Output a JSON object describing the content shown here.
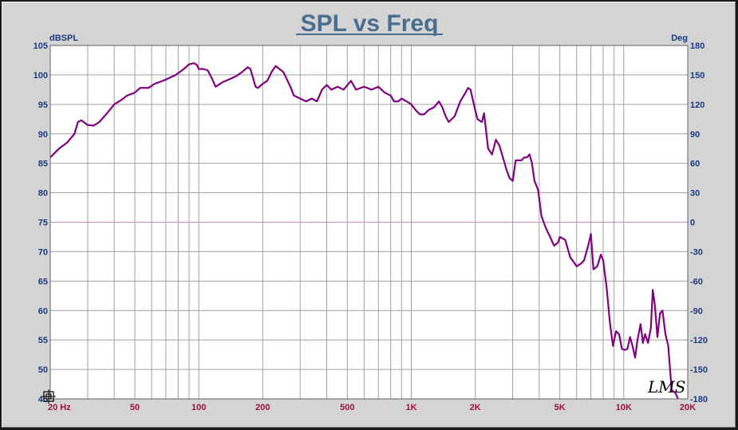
{
  "chart_data": {
    "type": "line",
    "title": "SPL vs Freq",
    "ylabel_left": "dBSPL",
    "ylabel_right": "Deg",
    "x_scale": "log",
    "xlim": [
      20,
      20000
    ],
    "ylim": [
      45,
      105
    ],
    "y2lim": [
      -180,
      180
    ],
    "grid": true,
    "x_tick_labels": [
      {
        "value": 20,
        "label": "20 Hz"
      },
      {
        "value": 50,
        "label": "50"
      },
      {
        "value": 100,
        "label": "100"
      },
      {
        "value": 200,
        "label": "200"
      },
      {
        "value": 500,
        "label": "500"
      },
      {
        "value": 1000,
        "label": "1K"
      },
      {
        "value": 2000,
        "label": "2K"
      },
      {
        "value": 5000,
        "label": "5K"
      },
      {
        "value": 10000,
        "label": "10K"
      },
      {
        "value": 20000,
        "label": "20K"
      }
    ],
    "y_ticks": [
      105,
      100,
      95,
      90,
      85,
      80,
      75,
      70,
      65,
      60,
      55,
      50,
      45
    ],
    "y2_ticks": [
      180,
      150,
      120,
      90,
      60,
      30,
      0,
      -30,
      -60,
      -90,
      -120,
      -150,
      -180
    ],
    "series": [
      {
        "color": "#800080",
        "points": [
          [
            20,
            86
          ],
          [
            22,
            87.5
          ],
          [
            24,
            88.5
          ],
          [
            26,
            90
          ],
          [
            27,
            92
          ],
          [
            28,
            92.3
          ],
          [
            30,
            91.5
          ],
          [
            32,
            91.4
          ],
          [
            34,
            92
          ],
          [
            37,
            93.5
          ],
          [
            40,
            95
          ],
          [
            43,
            95.7
          ],
          [
            46,
            96.5
          ],
          [
            50,
            97
          ],
          [
            53,
            97.8
          ],
          [
            58,
            97.8
          ],
          [
            62,
            98.5
          ],
          [
            70,
            99.2
          ],
          [
            78,
            100
          ],
          [
            85,
            101
          ],
          [
            90,
            101.8
          ],
          [
            95,
            102
          ],
          [
            98,
            101.7
          ],
          [
            100,
            101
          ],
          [
            105,
            101
          ],
          [
            110,
            100.8
          ],
          [
            115,
            99.5
          ],
          [
            120,
            98
          ],
          [
            130,
            98.8
          ],
          [
            140,
            99.3
          ],
          [
            150,
            99.8
          ],
          [
            160,
            100.5
          ],
          [
            170,
            101.3
          ],
          [
            175,
            101
          ],
          [
            185,
            98
          ],
          [
            190,
            97.8
          ],
          [
            200,
            98.5
          ],
          [
            210,
            99
          ],
          [
            220,
            100.5
          ],
          [
            230,
            101.5
          ],
          [
            250,
            100.5
          ],
          [
            270,
            98
          ],
          [
            280,
            96.5
          ],
          [
            300,
            96
          ],
          [
            320,
            95.5
          ],
          [
            340,
            96
          ],
          [
            360,
            95.5
          ],
          [
            380,
            97.5
          ],
          [
            400,
            98.3
          ],
          [
            420,
            97.5
          ],
          [
            450,
            98
          ],
          [
            480,
            97.5
          ],
          [
            520,
            99
          ],
          [
            550,
            97.5
          ],
          [
            600,
            98
          ],
          [
            650,
            97.5
          ],
          [
            700,
            98
          ],
          [
            750,
            97
          ],
          [
            800,
            96.5
          ],
          [
            830,
            95.5
          ],
          [
            870,
            95.5
          ],
          [
            900,
            96
          ],
          [
            950,
            95.5
          ],
          [
            1000,
            95
          ],
          [
            1050,
            94
          ],
          [
            1100,
            93.3
          ],
          [
            1150,
            93.3
          ],
          [
            1200,
            94
          ],
          [
            1280,
            94.5
          ],
          [
            1350,
            95.5
          ],
          [
            1400,
            94.5
          ],
          [
            1450,
            93
          ],
          [
            1500,
            92
          ],
          [
            1600,
            93
          ],
          [
            1700,
            95.5
          ],
          [
            1800,
            97
          ],
          [
            1850,
            97.8
          ],
          [
            1900,
            97.5
          ],
          [
            2000,
            94
          ],
          [
            2050,
            92.5
          ],
          [
            2150,
            92
          ],
          [
            2200,
            93.5
          ],
          [
            2300,
            87.5
          ],
          [
            2400,
            86.5
          ],
          [
            2500,
            89
          ],
          [
            2600,
            88
          ],
          [
            2800,
            84
          ],
          [
            2900,
            82.5
          ],
          [
            3000,
            82
          ],
          [
            3100,
            85.5
          ],
          [
            3300,
            85.5
          ],
          [
            3400,
            86
          ],
          [
            3500,
            86
          ],
          [
            3600,
            86.5
          ],
          [
            3700,
            85
          ],
          [
            3800,
            82
          ],
          [
            3950,
            80.5
          ],
          [
            4100,
            76
          ],
          [
            4300,
            74
          ],
          [
            4500,
            72.5
          ],
          [
            4700,
            71
          ],
          [
            4900,
            71.5
          ],
          [
            5000,
            72.5
          ],
          [
            5300,
            72
          ],
          [
            5600,
            69
          ],
          [
            5800,
            68.3
          ],
          [
            6000,
            67.5
          ],
          [
            6300,
            68
          ],
          [
            6500,
            68.5
          ],
          [
            6800,
            71
          ],
          [
            7000,
            73
          ],
          [
            7200,
            67
          ],
          [
            7500,
            67.5
          ],
          [
            7800,
            69.5
          ],
          [
            8000,
            68.5
          ],
          [
            8300,
            64
          ],
          [
            8600,
            58
          ],
          [
            8900,
            54
          ],
          [
            9200,
            56.5
          ],
          [
            9500,
            56
          ],
          [
            9800,
            53.5
          ],
          [
            10100,
            53.3
          ],
          [
            10400,
            53.5
          ],
          [
            10700,
            55.5
          ],
          [
            11000,
            54
          ],
          [
            11300,
            52
          ],
          [
            11600,
            55
          ],
          [
            12000,
            57.7
          ],
          [
            12300,
            54.5
          ],
          [
            12600,
            56
          ],
          [
            13000,
            54.5
          ],
          [
            13400,
            57
          ],
          [
            13700,
            63.5
          ],
          [
            14000,
            61
          ],
          [
            14400,
            55.5
          ],
          [
            14800,
            59.5
          ],
          [
            15200,
            60
          ],
          [
            15700,
            56
          ],
          [
            16200,
            54
          ],
          [
            16800,
            46.5
          ],
          [
            17500,
            46
          ],
          [
            18000,
            45
          ]
        ]
      }
    ],
    "watermark": "LMS"
  }
}
